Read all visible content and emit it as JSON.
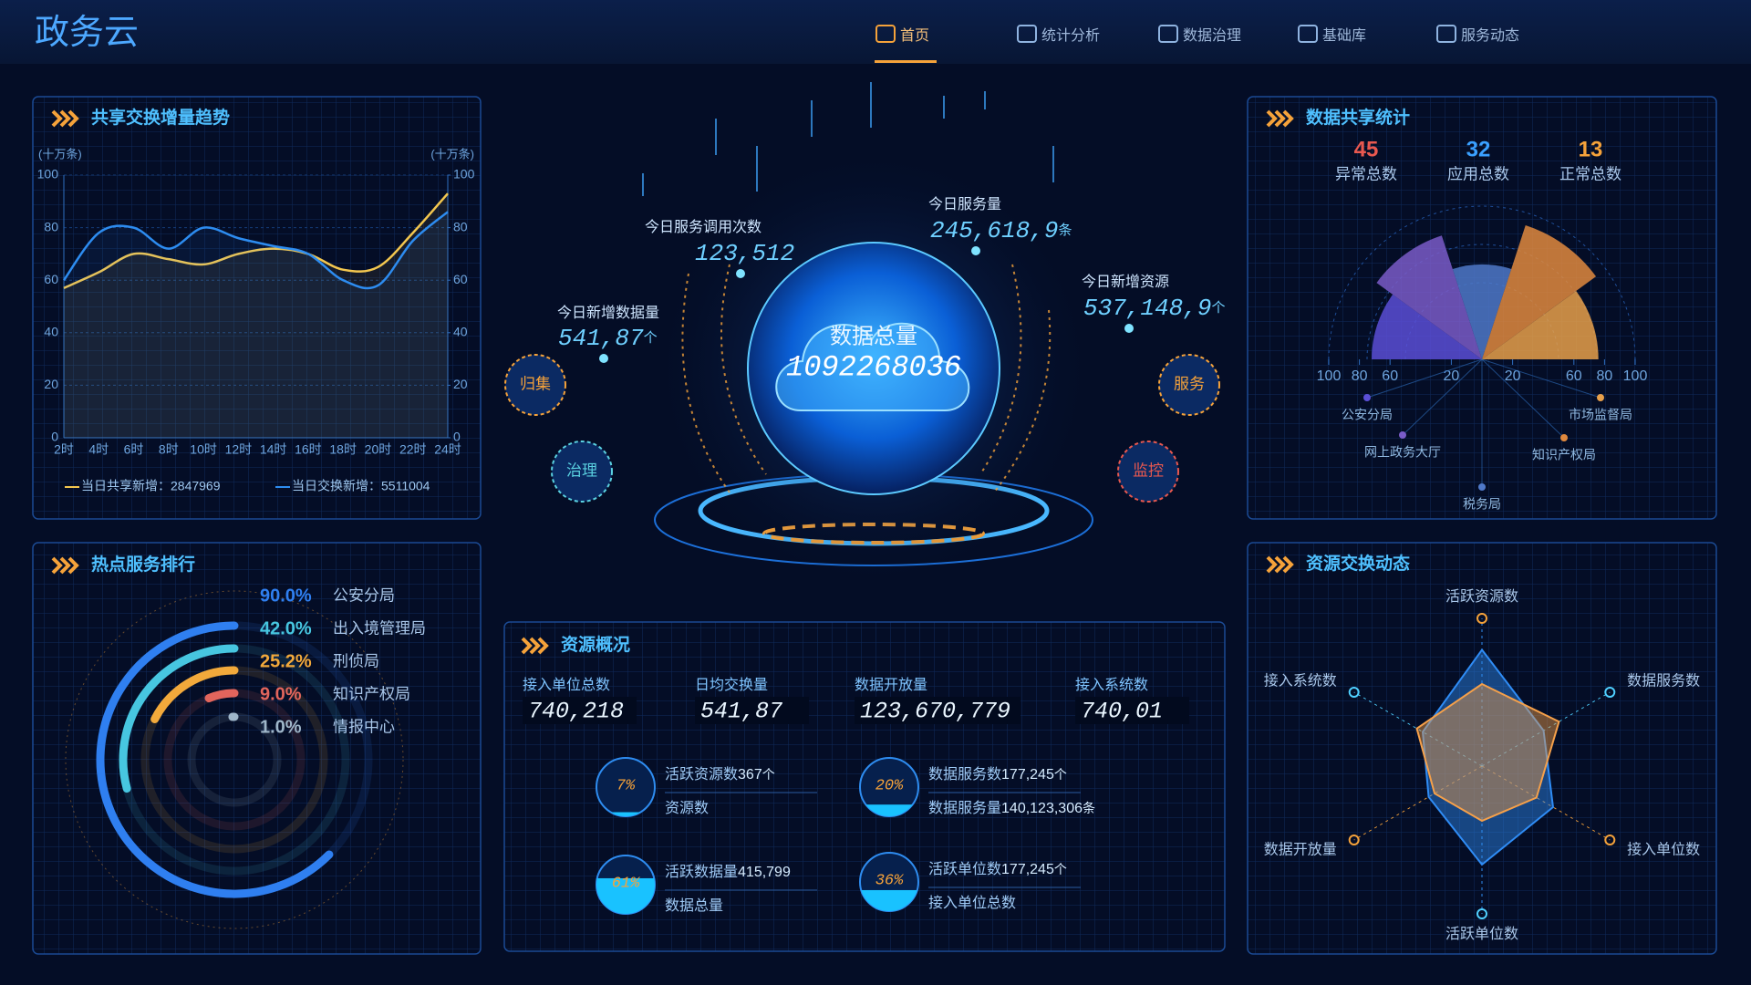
{
  "header": {
    "title": "政务云",
    "nav": [
      "首页",
      "统计分析",
      "数据治理",
      "基础库",
      "服务动态"
    ],
    "active": 0
  },
  "center": {
    "metrics": [
      {
        "label": "今日服务调用次数",
        "value": "123,512"
      },
      {
        "label": "今日服务量",
        "value": "245,618,9",
        "unit": "条"
      },
      {
        "label": "今日新增数据量",
        "value": "541,87",
        "unit": "个"
      },
      {
        "label": "今日新增资源",
        "value": "537,148,9",
        "unit": "个"
      }
    ],
    "total_label": "数据总量",
    "total_value": "1092268036",
    "badges": [
      "归集",
      "治理",
      "服务",
      "监控"
    ]
  },
  "resource_overview": {
    "title": "资源概况",
    "stats": [
      {
        "label": "接入单位总数",
        "value": "740,218"
      },
      {
        "label": "日均交换量",
        "value": "541,87"
      },
      {
        "label": "数据开放量",
        "value": "123,670,779"
      },
      {
        "label": "接入系统数",
        "value": "740,01"
      }
    ],
    "gauges": [
      {
        "percent": 7,
        "percent_label": "7%",
        "items": [
          {
            "label": "活跃资源数",
            "value": "367",
            "unit": "个"
          },
          {
            "label": "资源数"
          }
        ]
      },
      {
        "percent": 20,
        "percent_label": "20%",
        "items": [
          {
            "label": "数据服务数",
            "value": "177,245",
            "unit": "个"
          },
          {
            "label": "数据服务量",
            "value": "140,123,306",
            "unit": "条"
          }
        ]
      },
      {
        "percent": 61,
        "percent_label": "61%",
        "items": [
          {
            "label": "活跃数据量",
            "value": "415,799"
          },
          {
            "label": "数据总量"
          }
        ]
      },
      {
        "percent": 36,
        "percent_label": "36%",
        "items": [
          {
            "label": "活跃单位数",
            "value": "177,245",
            "unit": "个"
          },
          {
            "label": "接入单位总数"
          }
        ]
      }
    ]
  },
  "chart_data": [
    {
      "type": "line",
      "title": "共享交换增量趋势",
      "y_label": "(十万条)",
      "y2_label": "(十万条)",
      "categories": [
        "2时",
        "4时",
        "6时",
        "8时",
        "10时",
        "12时",
        "14时",
        "16时",
        "18时",
        "20时",
        "22时",
        "24时"
      ],
      "ylim": [
        0,
        100
      ],
      "yticks": [
        0,
        20,
        40,
        60,
        80,
        100
      ],
      "y2lim": [
        0,
        100
      ],
      "y2ticks": [
        0,
        20,
        40,
        60,
        80,
        100
      ],
      "smooth": true,
      "series": [
        {
          "name": "当日共享新增：2847969",
          "color": "#f3c74f",
          "values": [
            57,
            63,
            70,
            68,
            66,
            70,
            72,
            70,
            64,
            65,
            78,
            93
          ]
        },
        {
          "name": "当日交换新增：5511004",
          "color": "#2d8cf0",
          "values": [
            60,
            78,
            80,
            72,
            80,
            76,
            73,
            70,
            60,
            58,
            75,
            86
          ]
        }
      ]
    },
    {
      "type": "radial-bar",
      "title": "热点服务排行",
      "categories": [
        "公安分局",
        "出入境管理局",
        "刑侦局",
        "知识产权局",
        "情报中心"
      ],
      "values": [
        90.0,
        42.0,
        25.2,
        9.0,
        1.0
      ],
      "value_labels": [
        "90.0%",
        "42.0%",
        "25.2%",
        "9.0%",
        "1.0%"
      ],
      "ylim": [
        0,
        100
      ],
      "colors": [
        "#2f7ff0",
        "#47c6e0",
        "#f2a93b",
        "#e2655c",
        "#9fb6c9"
      ]
    },
    {
      "type": "rose",
      "title": "数据共享统计",
      "stats": [
        {
          "value": 45,
          "label": "异常总数",
          "color": "#e8584f"
        },
        {
          "value": 32,
          "label": "应用总数",
          "color": "#3aa0ff"
        },
        {
          "value": 13,
          "label": "正常总数",
          "color": "#f5a23a"
        }
      ],
      "categories": [
        "公安分局",
        "网上政务大厅",
        "税务局",
        "知识产权局",
        "市场监督局"
      ],
      "values": [
        72,
        85,
        62,
        92,
        76
      ],
      "colors": [
        "#5b4fd6",
        "#7a5cc8",
        "#4f79c9",
        "#e0893e",
        "#e8a04a"
      ],
      "ylim": [
        0,
        100
      ],
      "left_ticks": [
        100,
        80,
        60,
        20
      ],
      "right_ticks": [
        20,
        60,
        80,
        100
      ]
    },
    {
      "type": "radar",
      "title": "资源交换动态",
      "indicators": [
        "活跃资源数",
        "数据服务数",
        "接入单位数",
        "活跃单位数",
        "数据开放量",
        "接入系统数"
      ],
      "ylim": [
        0,
        100
      ],
      "series": [
        {
          "color": "#2f8cf5",
          "values": [
            85,
            52,
            60,
            72,
            45,
            50
          ]
        },
        {
          "color": "#f5a04a",
          "values": [
            60,
            65,
            46,
            40,
            40,
            55
          ]
        }
      ]
    }
  ]
}
